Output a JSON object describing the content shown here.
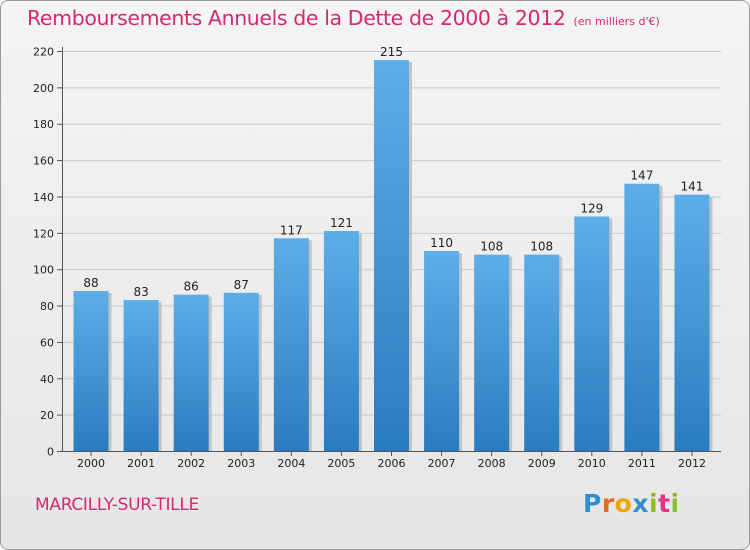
{
  "header": {
    "title": "Remboursements Annuels de la Dette de 2000 à 2012",
    "unit": "(en milliers d'€)"
  },
  "footer": {
    "city": "MARCILLY-SUR-TILLE",
    "logo": "Proxiti"
  },
  "colors": {
    "bar_top": "#5daee8",
    "bar_bottom": "#2a7cc0",
    "title": "#d6296e"
  },
  "chart_data": {
    "type": "bar",
    "title": "Remboursements Annuels de la Dette de 2000 à 2012",
    "subtitle": "(en milliers d'€)",
    "xlabel": "",
    "ylabel": "",
    "categories": [
      "2000",
      "2001",
      "2002",
      "2003",
      "2004",
      "2005",
      "2006",
      "2007",
      "2008",
      "2009",
      "2010",
      "2011",
      "2012"
    ],
    "values": [
      88,
      83,
      86,
      87,
      117,
      121,
      215,
      110,
      108,
      108,
      129,
      147,
      141
    ],
    "ylim": [
      0,
      220
    ],
    "yticks": [
      0,
      20,
      40,
      60,
      80,
      100,
      120,
      140,
      160,
      180,
      200,
      220
    ],
    "grid": true,
    "legend": "none"
  }
}
